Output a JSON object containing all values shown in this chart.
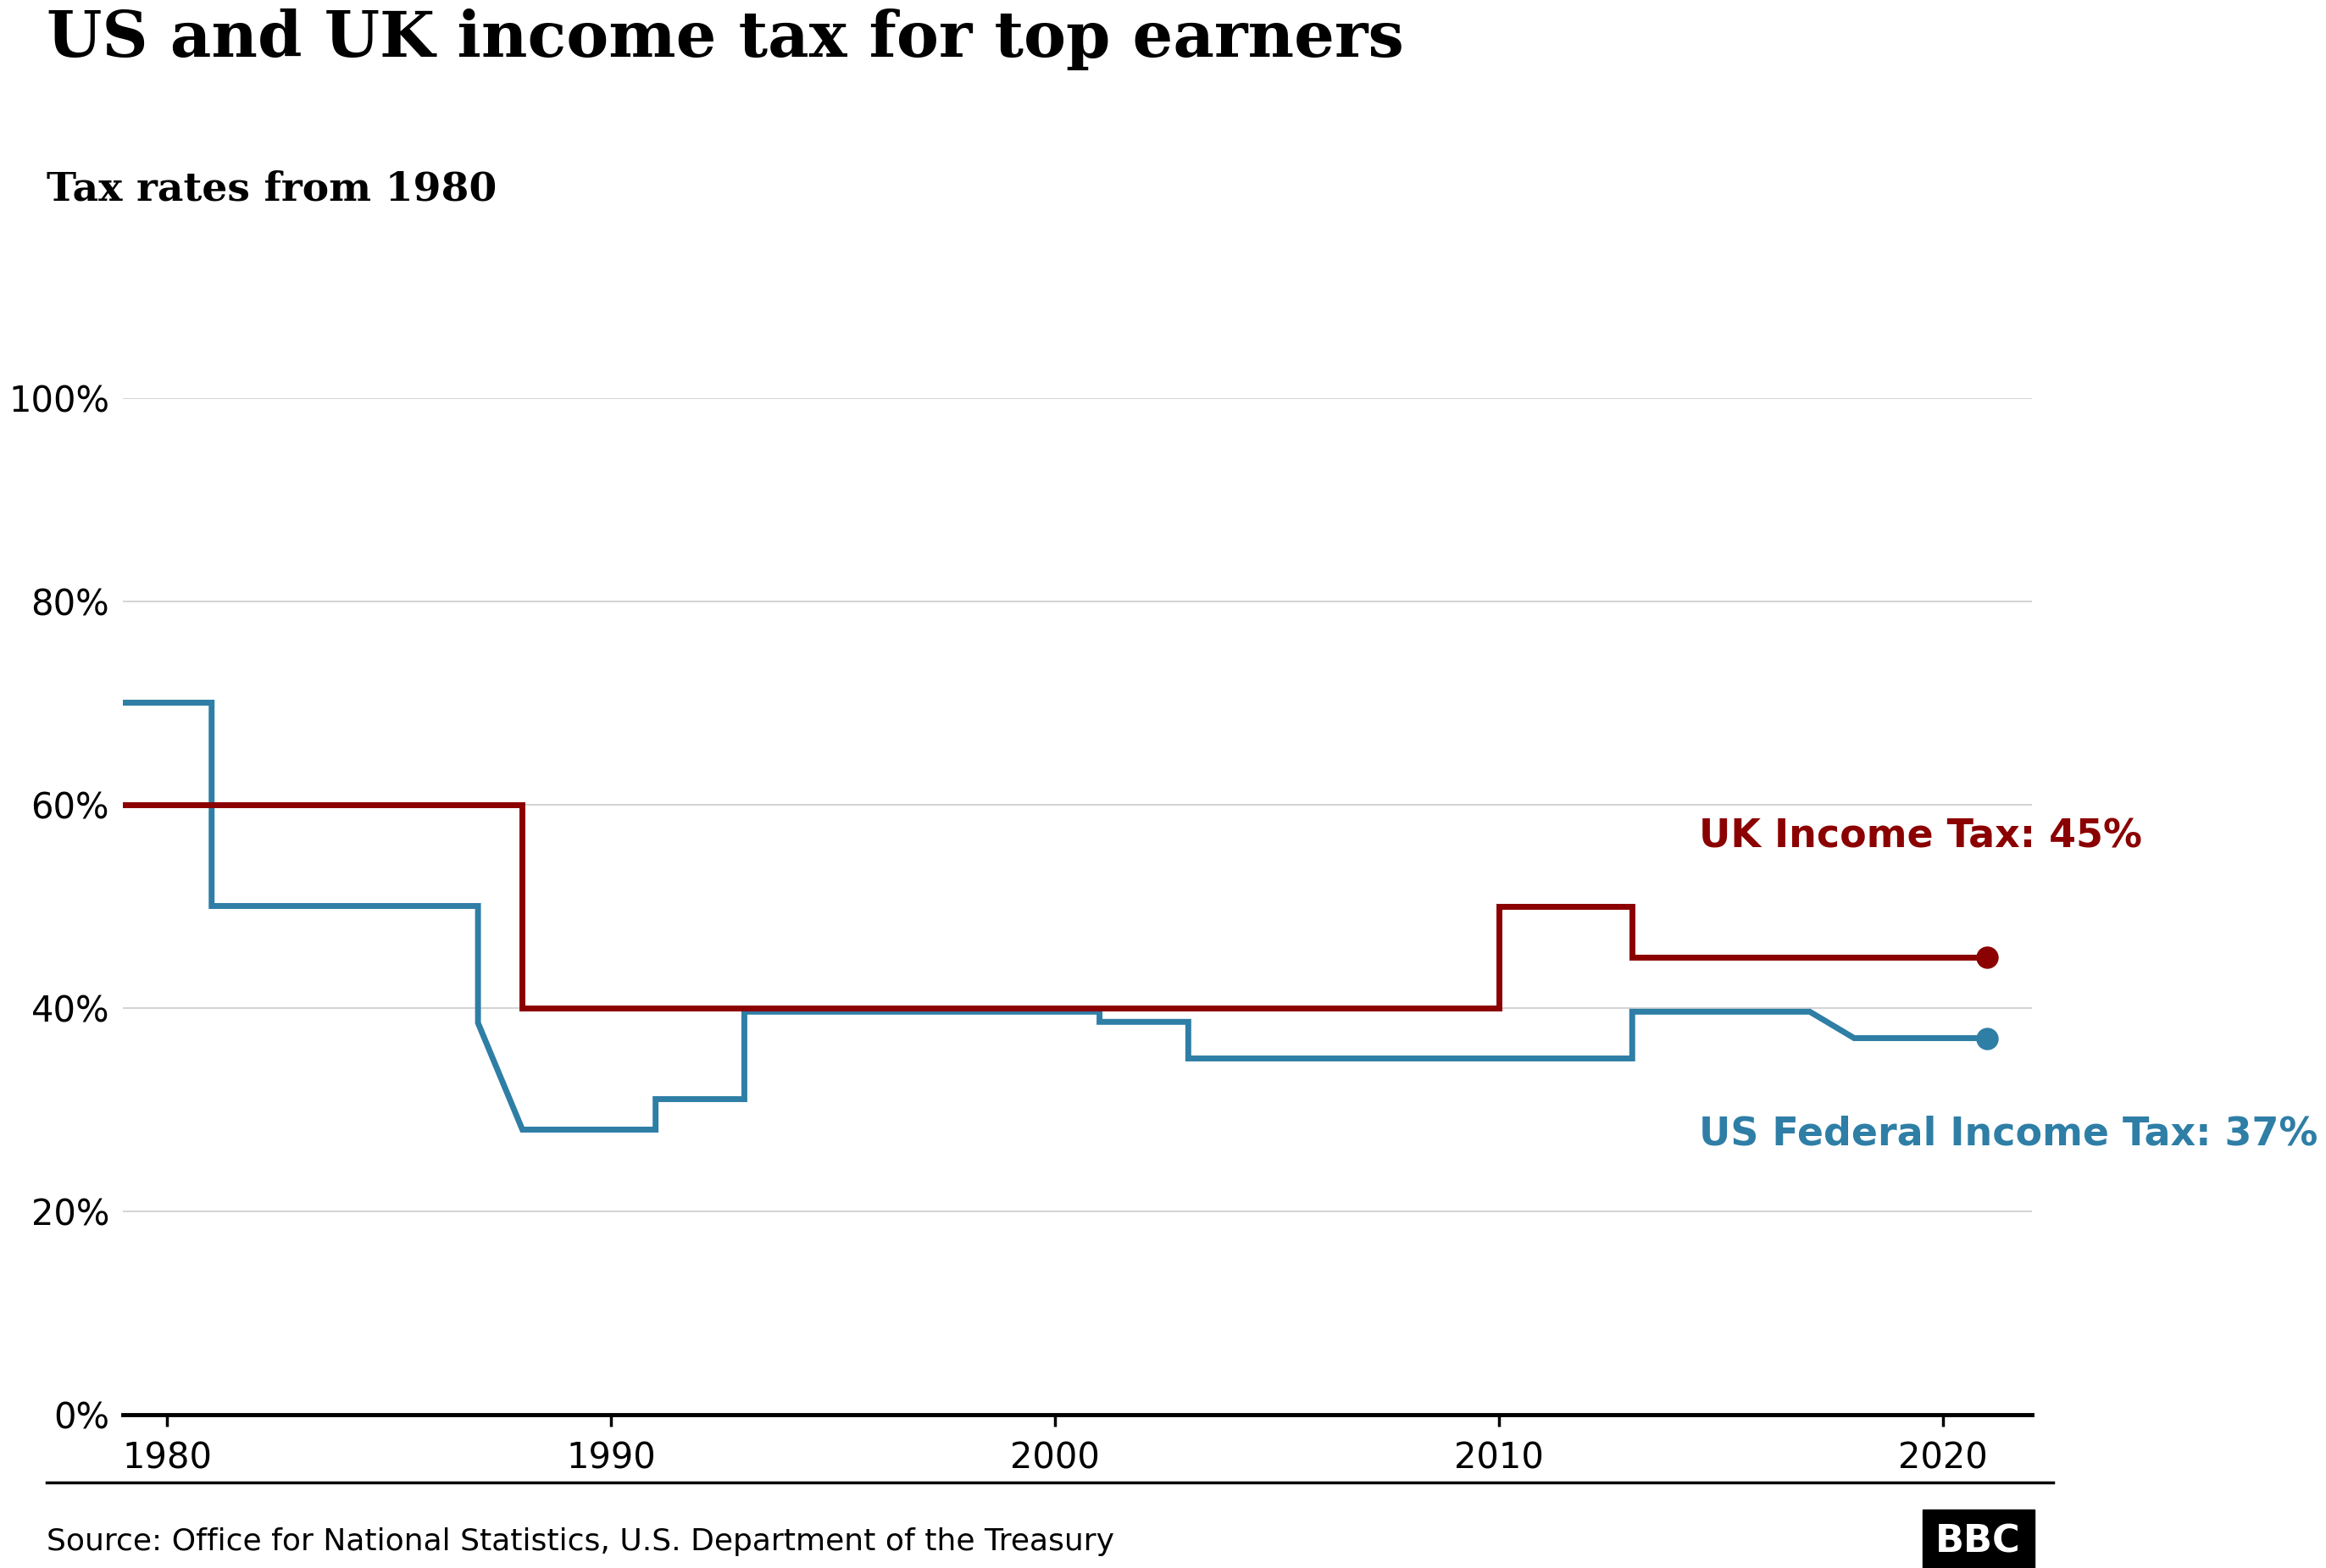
{
  "title": "US and UK income tax for top earners",
  "subtitle": "Tax rates from 1980",
  "source": "Source: Office for National Statistics, U.S. Department of the Treasury",
  "uk_label": "UK Income Tax: 45%",
  "us_label": "US Federal Income Tax: 37%",
  "uk_color": "#8B0000",
  "us_color": "#2E7EA6",
  "background_color": "#FFFFFF",
  "uk_data": [
    [
      1979,
      60
    ],
    [
      1988,
      60
    ],
    [
      1988,
      40
    ],
    [
      2010,
      40
    ],
    [
      2010,
      50
    ],
    [
      2013,
      50
    ],
    [
      2013,
      45
    ],
    [
      2021,
      45
    ]
  ],
  "us_data": [
    [
      1979,
      70
    ],
    [
      1981,
      70
    ],
    [
      1981,
      50
    ],
    [
      1987,
      50
    ],
    [
      1987,
      38.5
    ],
    [
      1988,
      28
    ],
    [
      1991,
      28
    ],
    [
      1991,
      31
    ],
    [
      1993,
      31
    ],
    [
      1993,
      39.6
    ],
    [
      2001,
      39.6
    ],
    [
      2001,
      38.6
    ],
    [
      2003,
      38.6
    ],
    [
      2003,
      35
    ],
    [
      2012,
      35
    ],
    [
      2013,
      35
    ],
    [
      2013,
      39.6
    ],
    [
      2017,
      39.6
    ],
    [
      2018,
      37
    ],
    [
      2021,
      37
    ]
  ],
  "ylim": [
    0,
    100
  ],
  "xlim": [
    1979,
    2022
  ],
  "yticks": [
    0,
    20,
    40,
    60,
    80,
    100
  ],
  "ytick_labels": [
    "0%",
    "20%",
    "40%",
    "60%",
    "80%",
    "100%"
  ],
  "xticks": [
    1980,
    1990,
    2000,
    2010,
    2020
  ],
  "title_fontsize": 54,
  "subtitle_fontsize": 34,
  "tick_fontsize": 30,
  "label_fontsize": 33,
  "source_fontsize": 26,
  "line_width": 5.0,
  "marker_size": 18
}
